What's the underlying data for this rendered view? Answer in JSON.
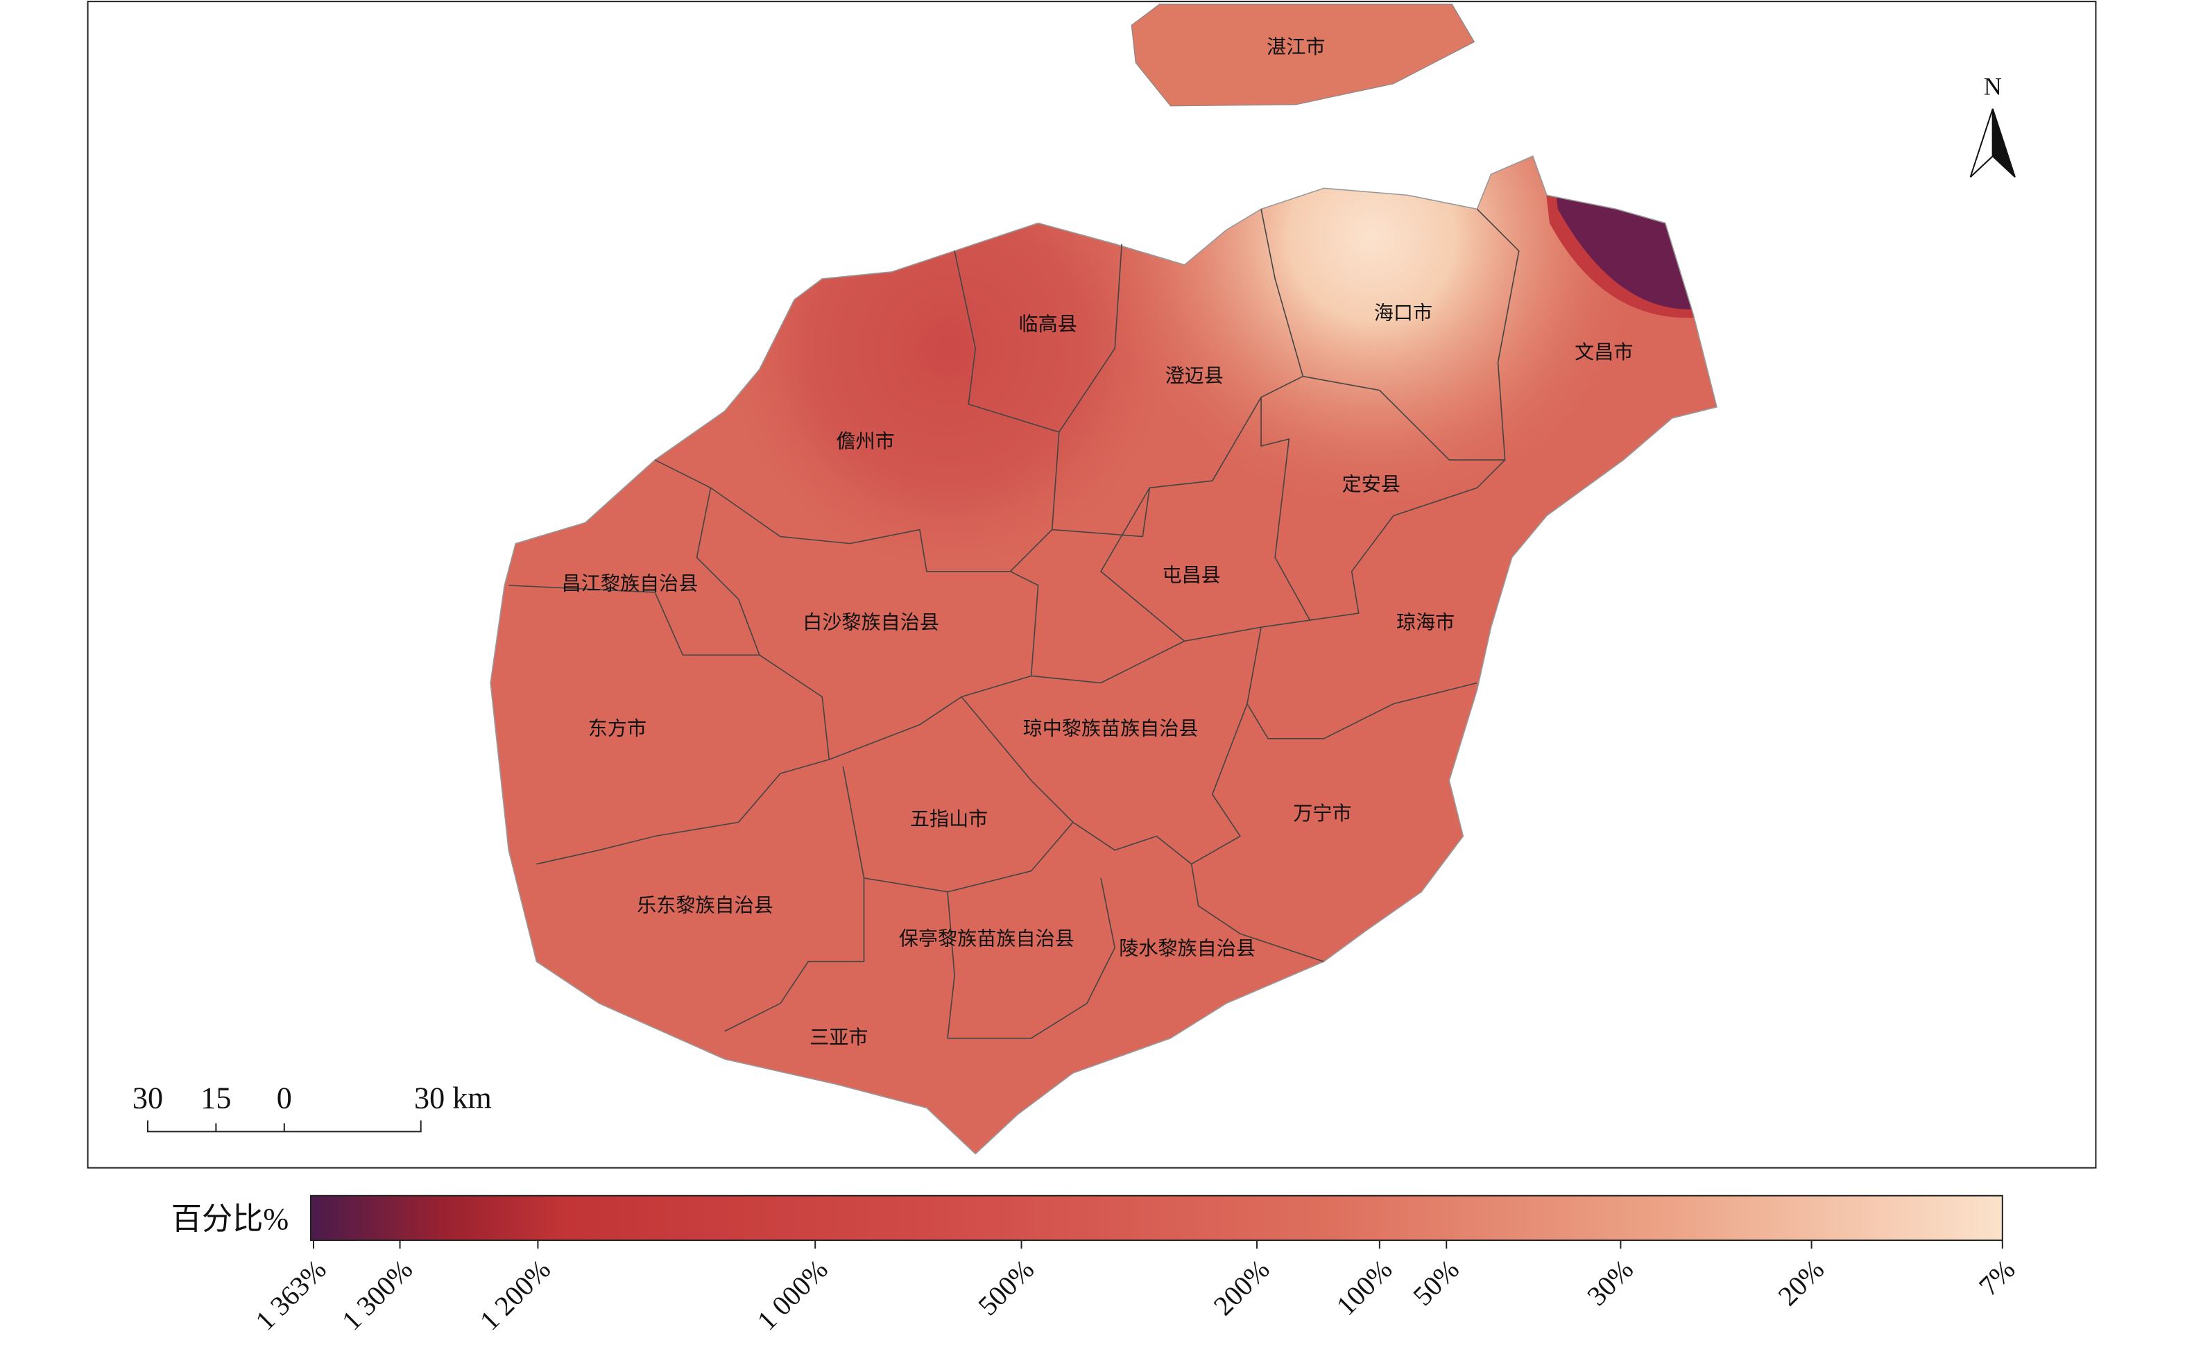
{
  "map": {
    "regions": [
      {
        "label": "湛江市"
      },
      {
        "label": "临高县"
      },
      {
        "label": "海口市"
      },
      {
        "label": "文昌市"
      },
      {
        "label": "澄迈县"
      },
      {
        "label": "儋州市"
      },
      {
        "label": "定安县"
      },
      {
        "label": "屯昌县"
      },
      {
        "label": "昌江黎族自治县"
      },
      {
        "label": "白沙黎族自治县"
      },
      {
        "label": "琼海市"
      },
      {
        "label": "东方市"
      },
      {
        "label": "琼中黎族苗族自治县"
      },
      {
        "label": "五指山市"
      },
      {
        "label": "万宁市"
      },
      {
        "label": "乐东黎族自治县"
      },
      {
        "label": "保亭黎族苗族自治县"
      },
      {
        "label": "陵水黎族自治县"
      },
      {
        "label": "三亚市"
      }
    ],
    "north": "N",
    "scale_bar": {
      "labels": [
        "30",
        "15",
        "0",
        "30 km"
      ]
    }
  },
  "legend": {
    "title": "百分比%",
    "ticks": [
      "1 363%",
      "1 300%",
      "1 200%",
      "1 000%",
      "500%",
      "200%",
      "100%",
      "50%",
      "30%",
      "20%",
      "7%"
    ]
  }
}
